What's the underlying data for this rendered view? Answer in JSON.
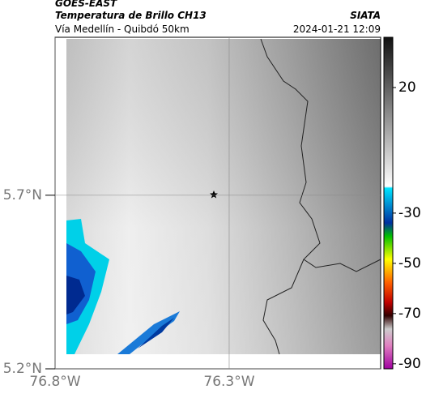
{
  "header": {
    "title": "GOES-EAST",
    "subtitle": "Temperatura de Brillo CH13",
    "source": "SIATA",
    "location": "Vía Medellín - Quibdó 50km",
    "timestamp": "2024-01-21 12:09"
  },
  "map": {
    "xlim": [
      -76.8,
      -75.865
    ],
    "ylim": [
      5.2,
      6.155
    ],
    "xticks": [
      {
        "value": -76.8,
        "label": "76.8°W"
      },
      {
        "value": -76.3,
        "label": "76.3°W"
      }
    ],
    "yticks": [
      {
        "value": 5.2,
        "label": "5.2°N"
      },
      {
        "value": 5.7,
        "label": "5.7°N"
      }
    ],
    "grid": true
  },
  "colorbar": {
    "lim": [
      -92,
      40
    ],
    "ticks": [
      20,
      -30,
      -50,
      -70,
      -90
    ]
  }
}
